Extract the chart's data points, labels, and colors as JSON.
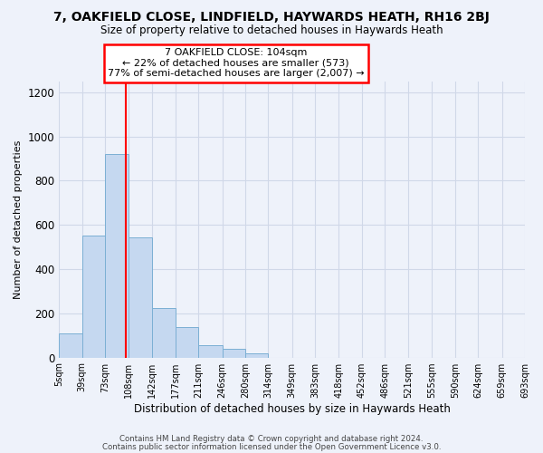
{
  "title": "7, OAKFIELD CLOSE, LINDFIELD, HAYWARDS HEATH, RH16 2BJ",
  "subtitle": "Size of property relative to detached houses in Haywards Heath",
  "xlabel": "Distribution of detached houses by size in Haywards Heath",
  "ylabel": "Number of detached properties",
  "bar_color": "#c5d8f0",
  "bar_edge_color": "#7bafd4",
  "background_color": "#eef2fa",
  "grid_color": "#d0d8e8",
  "bin_labels": [
    "5sqm",
    "39sqm",
    "73sqm",
    "108sqm",
    "142sqm",
    "177sqm",
    "211sqm",
    "246sqm",
    "280sqm",
    "314sqm",
    "349sqm",
    "383sqm",
    "418sqm",
    "452sqm",
    "486sqm",
    "521sqm",
    "555sqm",
    "590sqm",
    "624sqm",
    "659sqm",
    "693sqm"
  ],
  "bar_heights": [
    110,
    550,
    920,
    545,
    225,
    138,
    55,
    38,
    18,
    0,
    0,
    0,
    0,
    0,
    0,
    0,
    0,
    0,
    0,
    0
  ],
  "bin_edges": [
    5,
    39,
    73,
    108,
    142,
    177,
    211,
    246,
    280,
    314,
    349,
    383,
    418,
    452,
    486,
    521,
    555,
    590,
    624,
    659,
    693
  ],
  "red_line_x": 104,
  "annotation_line1": "7 OAKFIELD CLOSE: 104sqm",
  "annotation_line2": "← 22% of detached houses are smaller (573)",
  "annotation_line3": "77% of semi-detached houses are larger (2,007) →",
  "ylim": [
    0,
    1250
  ],
  "yticks": [
    0,
    200,
    400,
    600,
    800,
    1000,
    1200
  ],
  "footer_line1": "Contains HM Land Registry data © Crown copyright and database right 2024.",
  "footer_line2": "Contains public sector information licensed under the Open Government Licence v3.0."
}
